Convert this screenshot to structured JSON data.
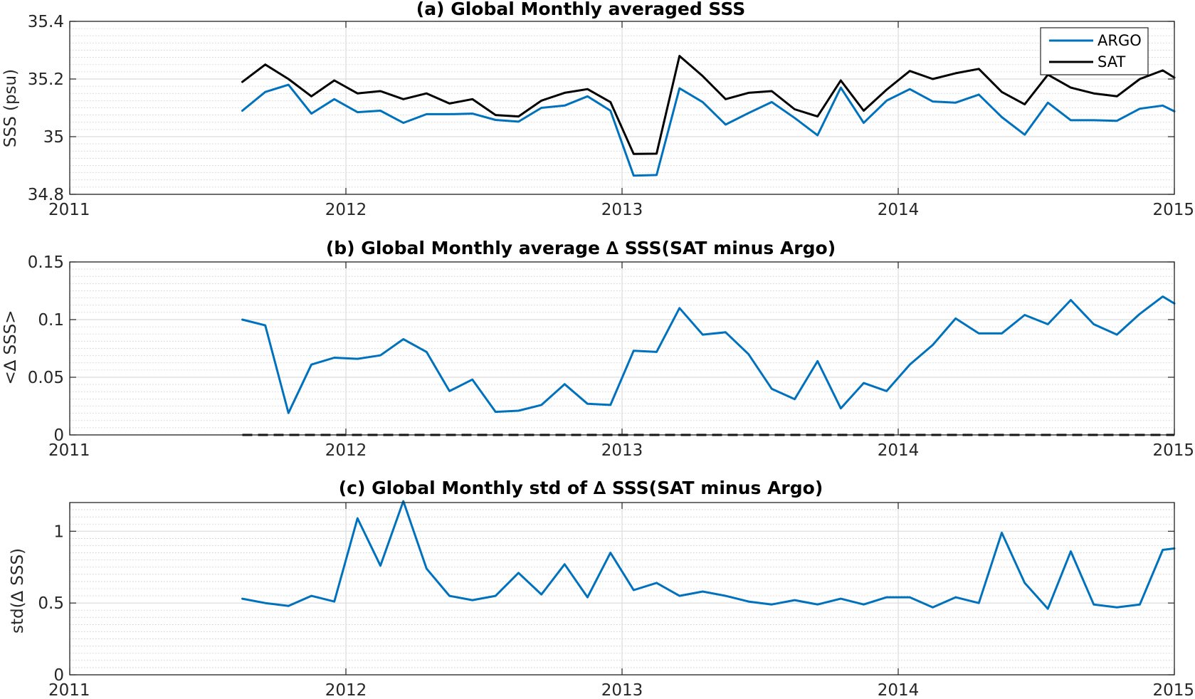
{
  "colors": {
    "argo": "#0072BD",
    "sat": "#000000",
    "grid": "#dcdcdc",
    "minor_grid": "#c8c8c8",
    "axis": "#262626"
  },
  "chart_data": [
    {
      "type": "line",
      "title": "(a) Global Monthly averaged SSS",
      "xlabel": "",
      "ylabel": "SSS (psu)",
      "xlim": [
        2011,
        2015
      ],
      "ylim": [
        34.8,
        35.4
      ],
      "xticks": [
        2011,
        2012,
        2013,
        2014,
        2015
      ],
      "xtick_labels": [
        "2011",
        "2012",
        "2013",
        "2014",
        "2015"
      ],
      "yticks": [
        34.8,
        35,
        35.2,
        35.4
      ],
      "ytick_labels": [
        "34.8",
        "35",
        "35.2",
        "35.4"
      ],
      "grid": true,
      "legend": "top-right",
      "x": [
        2011.625,
        2011.708,
        2011.792,
        2011.875,
        2011.958,
        2012.042,
        2012.125,
        2012.208,
        2012.292,
        2012.375,
        2012.458,
        2012.542,
        2012.625,
        2012.708,
        2012.792,
        2012.875,
        2012.958,
        2013.042,
        2013.125,
        2013.208,
        2013.292,
        2013.375,
        2013.458,
        2013.542,
        2013.625,
        2013.708,
        2013.792,
        2013.875,
        2013.958,
        2014.042,
        2014.125,
        2014.208,
        2014.292,
        2014.375,
        2014.458,
        2014.542,
        2014.625,
        2014.708,
        2014.792,
        2014.875,
        2014.958,
        2015.0
      ],
      "series": [
        {
          "name": "ARGO",
          "color": "#0072BD",
          "values": [
            35.09,
            35.155,
            35.18,
            35.08,
            35.13,
            35.085,
            35.09,
            35.048,
            35.078,
            35.078,
            35.08,
            35.058,
            35.052,
            35.1,
            35.108,
            35.14,
            35.09,
            34.865,
            34.867,
            35.168,
            35.12,
            35.042,
            35.082,
            35.12,
            35.065,
            35.005,
            35.17,
            35.048,
            35.125,
            35.165,
            35.122,
            35.118,
            35.146,
            35.068,
            35.007,
            35.118,
            35.057,
            35.057,
            35.055,
            35.097,
            35.108,
            35.088
          ]
        },
        {
          "name": "SAT",
          "color": "#000000",
          "values": [
            35.19,
            35.25,
            35.2,
            35.14,
            35.195,
            35.15,
            35.158,
            35.13,
            35.15,
            35.115,
            35.13,
            35.075,
            35.07,
            35.125,
            35.152,
            35.165,
            35.12,
            34.94,
            34.941,
            35.28,
            35.21,
            35.13,
            35.152,
            35.158,
            35.095,
            35.07,
            35.195,
            35.09,
            35.163,
            35.228,
            35.2,
            35.22,
            35.235,
            35.155,
            35.112,
            35.215,
            35.17,
            35.15,
            35.14,
            35.2,
            35.23,
            35.205
          ]
        }
      ]
    },
    {
      "type": "line",
      "title": "(b) Global Monthly average ∆ SSS(SAT minus Argo)",
      "xlabel": "",
      "ylabel": "<∆ SSS>",
      "xlim": [
        2011,
        2015
      ],
      "ylim": [
        0,
        0.15
      ],
      "xticks": [
        2011,
        2012,
        2013,
        2014,
        2015
      ],
      "xtick_labels": [
        "2011",
        "2012",
        "2013",
        "2014",
        "2015"
      ],
      "yticks": [
        0,
        0.05,
        0.1,
        0.15
      ],
      "ytick_labels": [
        "0",
        "0.05",
        "0.1",
        "0.15"
      ],
      "grid": true,
      "reference_line": {
        "y": 0,
        "style": "dashed",
        "color": "#000000",
        "x_range": [
          2011.625,
          2015.0
        ]
      },
      "x": [
        2011.625,
        2011.708,
        2011.792,
        2011.875,
        2011.958,
        2012.042,
        2012.125,
        2012.208,
        2012.292,
        2012.375,
        2012.458,
        2012.542,
        2012.625,
        2012.708,
        2012.792,
        2012.875,
        2012.958,
        2013.042,
        2013.125,
        2013.208,
        2013.292,
        2013.375,
        2013.458,
        2013.542,
        2013.625,
        2013.708,
        2013.792,
        2013.875,
        2013.958,
        2014.042,
        2014.125,
        2014.208,
        2014.292,
        2014.375,
        2014.458,
        2014.542,
        2014.625,
        2014.708,
        2014.792,
        2014.875,
        2014.958,
        2015.0
      ],
      "series": [
        {
          "color": "#0072BD",
          "values": [
            0.1,
            0.095,
            0.019,
            0.061,
            0.067,
            0.066,
            0.069,
            0.083,
            0.072,
            0.038,
            0.048,
            0.02,
            0.021,
            0.026,
            0.044,
            0.027,
            0.026,
            0.073,
            0.072,
            0.11,
            0.087,
            0.089,
            0.07,
            0.04,
            0.031,
            0.064,
            0.023,
            0.045,
            0.038,
            0.061,
            0.078,
            0.101,
            0.088,
            0.088,
            0.104,
            0.096,
            0.117,
            0.096,
            0.087,
            0.105,
            0.12,
            0.114
          ]
        }
      ]
    },
    {
      "type": "line",
      "title": "(c) Global Monthly std of ∆ SSS(SAT minus Argo)",
      "xlabel": "",
      "ylabel": "std(∆ SSS)",
      "xlim": [
        2011,
        2015
      ],
      "ylim": [
        0,
        1.2
      ],
      "xticks": [
        2011,
        2012,
        2013,
        2014,
        2015
      ],
      "xtick_labels": [
        "2011",
        "2012",
        "2013",
        "2014",
        "2015"
      ],
      "yticks": [
        0,
        0.5,
        1
      ],
      "ytick_labels": [
        "0",
        "0.5",
        "1"
      ],
      "grid": true,
      "x": [
        2011.625,
        2011.708,
        2011.792,
        2011.875,
        2011.958,
        2012.042,
        2012.125,
        2012.208,
        2012.292,
        2012.375,
        2012.458,
        2012.542,
        2012.625,
        2012.708,
        2012.792,
        2012.875,
        2012.958,
        2013.042,
        2013.125,
        2013.208,
        2013.292,
        2013.375,
        2013.458,
        2013.542,
        2013.625,
        2013.708,
        2013.792,
        2013.875,
        2013.958,
        2014.042,
        2014.125,
        2014.208,
        2014.292,
        2014.375,
        2014.458,
        2014.542,
        2014.625,
        2014.708,
        2014.792,
        2014.875,
        2014.958,
        2015.0
      ],
      "series": [
        {
          "color": "#0072BD",
          "values": [
            0.53,
            0.5,
            0.48,
            0.55,
            0.51,
            1.09,
            0.76,
            1.21,
            0.74,
            0.55,
            0.52,
            0.55,
            0.71,
            0.56,
            0.77,
            0.54,
            0.85,
            0.59,
            0.64,
            0.55,
            0.58,
            0.55,
            0.51,
            0.49,
            0.52,
            0.49,
            0.53,
            0.49,
            0.54,
            0.54,
            0.47,
            0.54,
            0.5,
            0.99,
            0.64,
            0.46,
            0.86,
            0.49,
            0.47,
            0.49,
            0.87,
            0.88
          ]
        }
      ]
    }
  ]
}
